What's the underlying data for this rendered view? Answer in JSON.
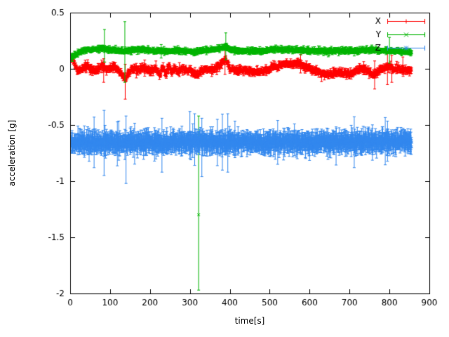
{
  "chart_data": {
    "type": "scatter",
    "style": "errorbars",
    "title": "",
    "xlabel": "time[s]",
    "ylabel": "acceleration [g]",
    "xlim": [
      0,
      900
    ],
    "ylim": [
      -2,
      0.5
    ],
    "xticks": [
      0,
      100,
      200,
      300,
      400,
      500,
      600,
      700,
      800,
      900
    ],
    "xtick_labels": [
      "0",
      "100",
      "200",
      "300",
      "400",
      "500",
      "600",
      "700",
      "800",
      "900"
    ],
    "yticks": [
      0.5,
      0,
      -0.5,
      -1,
      -1.5,
      -2
    ],
    "ytick_labels": [
      "0.5",
      "0",
      "-0.5",
      "-1",
      "-1.5",
      "-2"
    ],
    "grid": false,
    "legend_position": "top-right",
    "background": "#ffffff",
    "axis_color": "#000000",
    "t_range": [
      2,
      856
    ],
    "sample_step": 0.7,
    "series": [
      {
        "name": "X",
        "color": "#ff0000",
        "marker": "plus",
        "noise_sigma": 0.012,
        "err_base": 0.01,
        "err_var": 0.012,
        "spike_prob": 0.015,
        "spike_mult": 2.5,
        "baseline": [
          [
            0,
            0.1
          ],
          [
            6,
            0.09
          ],
          [
            12,
            0.03
          ],
          [
            20,
            -0.02
          ],
          [
            30,
            0.0
          ],
          [
            45,
            0.02
          ],
          [
            60,
            -0.02
          ],
          [
            70,
            0.0
          ],
          [
            80,
            0.03
          ],
          [
            90,
            -0.01
          ],
          [
            100,
            0.0
          ],
          [
            110,
            0.02
          ],
          [
            120,
            -0.02
          ],
          [
            130,
            -0.05
          ],
          [
            138,
            -0.09
          ],
          [
            145,
            -0.04
          ],
          [
            155,
            0.0
          ],
          [
            170,
            -0.01
          ],
          [
            185,
            0.01
          ],
          [
            200,
            -0.02
          ],
          [
            215,
            0.0
          ],
          [
            225,
            -0.06
          ],
          [
            232,
            0.02
          ],
          [
            240,
            -0.05
          ],
          [
            248,
            0.03
          ],
          [
            255,
            -0.04
          ],
          [
            262,
            0.01
          ],
          [
            270,
            -0.03
          ],
          [
            280,
            0.0
          ],
          [
            290,
            -0.02
          ],
          [
            300,
            -0.01
          ],
          [
            310,
            -0.04
          ],
          [
            320,
            -0.05
          ],
          [
            330,
            -0.02
          ],
          [
            340,
            0.0
          ],
          [
            350,
            -0.01
          ],
          [
            360,
            0.0
          ],
          [
            370,
            0.02
          ],
          [
            380,
            0.05
          ],
          [
            388,
            0.09
          ],
          [
            395,
            0.05
          ],
          [
            400,
            0.0
          ],
          [
            420,
            -0.02
          ],
          [
            440,
            -0.01
          ],
          [
            460,
            -0.03
          ],
          [
            480,
            -0.02
          ],
          [
            500,
            0.0
          ],
          [
            510,
            0.02
          ],
          [
            520,
            0.01
          ],
          [
            530,
            0.04
          ],
          [
            545,
            0.05
          ],
          [
            560,
            0.04
          ],
          [
            575,
            0.05
          ],
          [
            585,
            0.02
          ],
          [
            600,
            0.0
          ],
          [
            615,
            -0.02
          ],
          [
            630,
            -0.04
          ],
          [
            645,
            -0.05
          ],
          [
            660,
            -0.04
          ],
          [
            675,
            -0.03
          ],
          [
            690,
            -0.04
          ],
          [
            700,
            -0.05
          ],
          [
            710,
            -0.03
          ],
          [
            720,
            -0.01
          ],
          [
            730,
            0.0
          ],
          [
            745,
            -0.02
          ],
          [
            760,
            -0.05
          ],
          [
            775,
            -0.02
          ],
          [
            790,
            0.01
          ],
          [
            800,
            0.02
          ],
          [
            810,
            -0.01
          ],
          [
            820,
            0.0
          ],
          [
            835,
            -0.01
          ],
          [
            855,
            -0.01
          ]
        ],
        "outliers": [
          {
            "t": 84,
            "y": -0.02,
            "lo": -0.12,
            "hi": 0.09
          },
          {
            "t": 138,
            "y": -0.1,
            "lo": -0.27,
            "hi": 0.04
          },
          {
            "t": 388,
            "y": 0.09,
            "lo": -0.05,
            "hi": 0.18
          },
          {
            "t": 763,
            "y": -0.05,
            "lo": -0.18,
            "hi": 0.07
          },
          {
            "t": 795,
            "y": 0.02,
            "lo": -0.14,
            "hi": 0.16
          },
          {
            "t": 806,
            "y": 0.0,
            "lo": -0.12,
            "hi": 0.12
          }
        ]
      },
      {
        "name": "Y",
        "color": "#00b400",
        "marker": "cross",
        "noise_sigma": 0.008,
        "err_base": 0.008,
        "err_var": 0.01,
        "spike_prob": 0.008,
        "spike_mult": 2.0,
        "baseline": [
          [
            0,
            0.1
          ],
          [
            8,
            0.11
          ],
          [
            16,
            0.13
          ],
          [
            30,
            0.16
          ],
          [
            50,
            0.17
          ],
          [
            80,
            0.18
          ],
          [
            100,
            0.17
          ],
          [
            130,
            0.16
          ],
          [
            160,
            0.17
          ],
          [
            190,
            0.17
          ],
          [
            220,
            0.16
          ],
          [
            250,
            0.16
          ],
          [
            280,
            0.16
          ],
          [
            310,
            0.15
          ],
          [
            330,
            0.16
          ],
          [
            355,
            0.17
          ],
          [
            375,
            0.18
          ],
          [
            388,
            0.2
          ],
          [
            395,
            0.18
          ],
          [
            420,
            0.16
          ],
          [
            450,
            0.16
          ],
          [
            480,
            0.16
          ],
          [
            510,
            0.17
          ],
          [
            540,
            0.17
          ],
          [
            570,
            0.17
          ],
          [
            600,
            0.16
          ],
          [
            630,
            0.16
          ],
          [
            660,
            0.16
          ],
          [
            690,
            0.16
          ],
          [
            720,
            0.16
          ],
          [
            750,
            0.17
          ],
          [
            780,
            0.16
          ],
          [
            810,
            0.16
          ],
          [
            830,
            0.15
          ],
          [
            855,
            0.15
          ]
        ],
        "outliers": [
          {
            "t": 86,
            "y": 0.2,
            "lo": 0.06,
            "hi": 0.35
          },
          {
            "t": 137,
            "y": 0.17,
            "lo": -0.12,
            "hi": 0.42
          },
          {
            "t": 322,
            "y": -1.3,
            "lo": -1.97,
            "hi": -0.42
          },
          {
            "t": 390,
            "y": 0.22,
            "lo": 0.08,
            "hi": 0.32
          },
          {
            "t": 800,
            "y": 0.17,
            "lo": 0.05,
            "hi": 0.28
          }
        ]
      },
      {
        "name": "Z",
        "color": "#3388ee",
        "marker": "star",
        "noise_sigma": 0.02,
        "err_base": 0.04,
        "err_var": 0.035,
        "spike_prob": 0.02,
        "spike_mult": 2.2,
        "baseline": [
          [
            0,
            -0.655
          ],
          [
            40,
            -0.66
          ],
          [
            80,
            -0.655
          ],
          [
            120,
            -0.665
          ],
          [
            160,
            -0.66
          ],
          [
            200,
            -0.655
          ],
          [
            240,
            -0.66
          ],
          [
            280,
            -0.65
          ],
          [
            320,
            -0.645
          ],
          [
            360,
            -0.655
          ],
          [
            400,
            -0.66
          ],
          [
            440,
            -0.655
          ],
          [
            480,
            -0.66
          ],
          [
            520,
            -0.655
          ],
          [
            560,
            -0.65
          ],
          [
            600,
            -0.66
          ],
          [
            640,
            -0.655
          ],
          [
            680,
            -0.65
          ],
          [
            720,
            -0.65
          ],
          [
            760,
            -0.655
          ],
          [
            800,
            -0.65
          ],
          [
            855,
            -0.65
          ]
        ],
        "outliers": [
          {
            "t": 60,
            "y": -0.64,
            "lo": -0.88,
            "hi": -0.43
          },
          {
            "t": 85,
            "y": -0.62,
            "lo": -0.95,
            "hi": -0.37
          },
          {
            "t": 140,
            "y": -0.68,
            "lo": -1.02,
            "hi": -0.42
          },
          {
            "t": 230,
            "y": -0.66,
            "lo": -0.92,
            "hi": -0.44
          },
          {
            "t": 300,
            "y": -0.6,
            "lo": -0.8,
            "hi": -0.38
          },
          {
            "t": 312,
            "y": -0.62,
            "lo": -0.86,
            "hi": -0.4
          },
          {
            "t": 330,
            "y": -0.66,
            "lo": -0.96,
            "hi": -0.44
          },
          {
            "t": 395,
            "y": -0.64,
            "lo": -0.92,
            "hi": -0.4
          },
          {
            "t": 520,
            "y": -0.65,
            "lo": -0.85,
            "hi": -0.46
          }
        ]
      }
    ]
  }
}
